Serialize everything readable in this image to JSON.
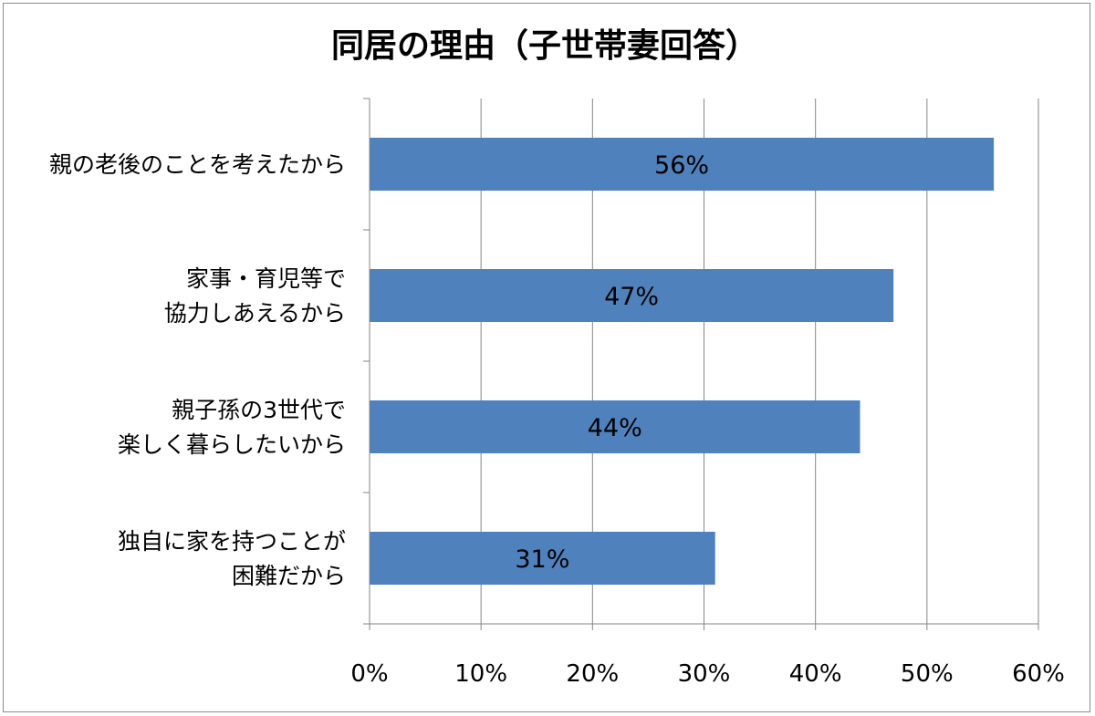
{
  "chart_data": {
    "type": "bar",
    "orientation": "horizontal",
    "title": "同居の理由（子世帯妻回答）",
    "categories": [
      [
        "親の老後のことを考えたから"
      ],
      [
        "家事・育児等で",
        "協力しあえるから"
      ],
      [
        "親子孫の3世代で",
        "楽しく暮らしたいから"
      ],
      [
        "独自に家を持つことが",
        "困難だから"
      ]
    ],
    "values": [
      56,
      47,
      44,
      31
    ],
    "data_labels": [
      "56%",
      "47%",
      "44%",
      "31%"
    ],
    "xlim": [
      0,
      60
    ],
    "xticks": [
      "0%",
      "10%",
      "20%",
      "30%",
      "40%",
      "50%",
      "60%"
    ],
    "grid": true,
    "bar_color": "#4f81bd",
    "grid_color": "#868686"
  }
}
